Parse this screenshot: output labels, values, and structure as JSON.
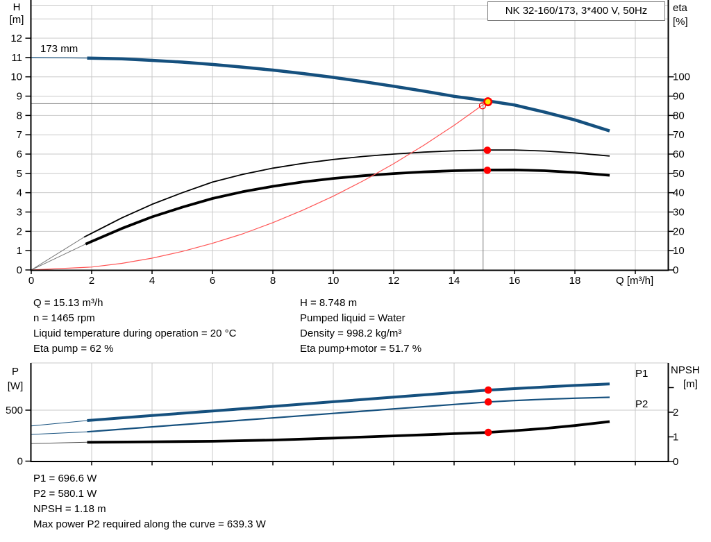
{
  "colors": {
    "curve_blue": "#15507e",
    "curve_black": "#000000",
    "system_red": "#ff5555",
    "marker_red": "#ff0000",
    "marker_yellow": "#ffe600",
    "grid": "#c8c8c8",
    "crosshair": "#7a7a7a"
  },
  "duty_info": {
    "left": [
      "Q = 15.13 m³/h",
      "n = 1465 rpm",
      "Liquid temperature during operation = 20 °C",
      "Eta pump = 62 %"
    ],
    "right": [
      "H = 8.748 m",
      "Pumped liquid = Water",
      "Density = 998.2 kg/m³",
      "Eta pump+motor = 51.7 %"
    ]
  },
  "power_info": [
    "P1 = 696.6 W",
    "P2 = 580.1 W",
    "NPSH = 1.18 m",
    "Max power P2 required along the curve = 639.3 W"
  ],
  "chart_data": [
    {
      "type": "line",
      "name": "hq-eta-chart",
      "title": "NK 32-160/173, 3*400 V, 50Hz",
      "x_axis": {
        "title": "Q [m³/h]",
        "ticks": [
          0,
          2,
          4,
          6,
          8,
          10,
          12,
          14,
          16,
          18,
          20
        ],
        "tick_labels": [
          "0",
          "2",
          "4",
          "6",
          "8",
          "10",
          "12",
          "14",
          "16",
          "18",
          ""
        ],
        "range": [
          0,
          21.1
        ]
      },
      "y_left": {
        "title": [
          "H",
          "[m]"
        ],
        "ticks": [
          0,
          1,
          2,
          3,
          4,
          5,
          6,
          7,
          8,
          9,
          10,
          11,
          12
        ],
        "grid": [
          1,
          2,
          3,
          4,
          5,
          6,
          7,
          8,
          9,
          10,
          11,
          12,
          13
        ],
        "range": [
          0,
          13.7
        ]
      },
      "y_right": {
        "title": [
          "eta",
          "[%]"
        ],
        "ticks": [
          0,
          10,
          20,
          30,
          40,
          50,
          60,
          70,
          80,
          90,
          100
        ],
        "range": [
          0,
          137
        ]
      },
      "crosshair": {
        "q": 14.96,
        "h": 8.61
      },
      "series": [
        {
          "name": "head-curve-extension",
          "axis": "left",
          "color": "#15507e",
          "width": 1.2,
          "points": [
            [
              0,
              11
            ],
            [
              1.85,
              10.97
            ]
          ]
        },
        {
          "name": "head-curve-173mm",
          "label": "173 mm",
          "label_at": [
            0.3,
            11.28
          ],
          "label_color": "#000000",
          "axis": "left",
          "color": "#15507e",
          "width": 4.5,
          "points": [
            [
              1.85,
              10.97
            ],
            [
              3,
              10.93
            ],
            [
              4,
              10.85
            ],
            [
              5,
              10.76
            ],
            [
              6,
              10.64
            ],
            [
              7,
              10.5
            ],
            [
              8,
              10.35
            ],
            [
              9,
              10.17
            ],
            [
              10,
              9.97
            ],
            [
              11,
              9.75
            ],
            [
              12,
              9.51
            ],
            [
              13,
              9.26
            ],
            [
              14,
              8.99
            ],
            [
              15.13,
              8.75
            ],
            [
              16,
              8.54
            ],
            [
              17,
              8.17
            ],
            [
              18,
              7.77
            ],
            [
              19.15,
              7.2
            ]
          ]
        },
        {
          "name": "eta-pump-extension",
          "axis": "right",
          "color": "#777777",
          "width": 1,
          "points": [
            [
              0,
              0
            ],
            [
              1.75,
              17
            ]
          ]
        },
        {
          "name": "eta-pump-curve",
          "axis": "right",
          "color": "#000000",
          "width": 1.8,
          "points": [
            [
              1.75,
              17
            ],
            [
              3,
              27
            ],
            [
              4,
              34
            ],
            [
              5,
              40
            ],
            [
              6,
              45.5
            ],
            [
              7,
              49.5
            ],
            [
              8,
              52.7
            ],
            [
              9,
              55.2
            ],
            [
              10,
              57.2
            ],
            [
              11,
              58.8
            ],
            [
              12,
              60
            ],
            [
              13,
              61
            ],
            [
              14,
              61.7
            ],
            [
              15.13,
              62.1
            ],
            [
              16,
              62.1
            ],
            [
              17,
              61.6
            ],
            [
              18,
              60.6
            ],
            [
              19.15,
              59
            ]
          ]
        },
        {
          "name": "eta-pump-motor-extension",
          "axis": "right",
          "color": "#777777",
          "width": 1,
          "points": [
            [
              0,
              0
            ],
            [
              1.8,
              13.4
            ]
          ]
        },
        {
          "name": "eta-pump-motor-curve",
          "axis": "right",
          "color": "#000000",
          "width": 3.8,
          "points": [
            [
              1.8,
              13.4
            ],
            [
              3,
              21.5
            ],
            [
              4,
              27.5
            ],
            [
              5,
              32.5
            ],
            [
              6,
              37
            ],
            [
              7,
              40.5
            ],
            [
              8,
              43.3
            ],
            [
              9,
              45.6
            ],
            [
              10,
              47.4
            ],
            [
              11,
              48.8
            ],
            [
              12,
              49.9
            ],
            [
              13,
              50.8
            ],
            [
              14,
              51.4
            ],
            [
              15.13,
              51.75
            ],
            [
              16,
              51.8
            ],
            [
              17,
              51.4
            ],
            [
              18,
              50.5
            ],
            [
              19.15,
              49
            ]
          ]
        },
        {
          "name": "system-curve",
          "axis": "left",
          "color": "#ff5555",
          "width": 1.2,
          "points": [
            [
              0,
              0
            ],
            [
              2,
              0.15
            ],
            [
              3,
              0.34
            ],
            [
              4,
              0.61
            ],
            [
              5,
              0.96
            ],
            [
              6,
              1.38
            ],
            [
              7,
              1.87
            ],
            [
              8,
              2.45
            ],
            [
              9,
              3.1
            ],
            [
              10,
              3.82
            ],
            [
              11,
              4.62
            ],
            [
              12,
              5.5
            ],
            [
              13,
              6.46
            ],
            [
              14,
              7.49
            ],
            [
              15.13,
              8.75
            ]
          ]
        }
      ],
      "markers": [
        {
          "type": "dot",
          "name": "eta-pump-duty-marker",
          "q": 15.1,
          "value": 62,
          "axis": "right",
          "color": "#ff0000"
        },
        {
          "type": "dot",
          "name": "eta-pump-motor-duty-marker",
          "q": 15.1,
          "value": 51.6,
          "axis": "right",
          "color": "#ff0000"
        },
        {
          "type": "open",
          "name": "requested-duty-marker",
          "q": 14.94,
          "value": 8.5,
          "axis": "left",
          "color": "#ff0000"
        },
        {
          "type": "duty",
          "name": "duty-point-marker",
          "q": 15.12,
          "value": 8.71,
          "axis": "left",
          "fill": "#ffe600",
          "stroke": "#ff0000"
        }
      ]
    },
    {
      "type": "line",
      "name": "power-npsh-chart",
      "x_axis": {
        "ticks": [
          2,
          4,
          6,
          8,
          10,
          12,
          14,
          16,
          18,
          20
        ],
        "tick_labels": [
          "",
          "",
          "",
          "",
          "",
          "",
          "",
          "",
          "",
          ""
        ],
        "range": [
          0,
          21.1
        ]
      },
      "y_left": {
        "title": [
          "P",
          "[W]"
        ],
        "ticks": [
          0,
          500
        ],
        "grid": [
          500
        ],
        "range": [
          0,
          965
        ]
      },
      "y_right": {
        "title": [
          "NPSH",
          "[m]"
        ],
        "ticks": [
          0,
          1,
          2,
          3
        ],
        "tick_labels": [
          "0",
          "1",
          "2",
          ""
        ],
        "range": [
          0,
          4
        ]
      },
      "series": [
        {
          "name": "p1-curve-extension",
          "axis": "left",
          "color": "#15507e",
          "width": 1,
          "points": [
            [
              0,
              345
            ],
            [
              1.85,
              398
            ]
          ]
        },
        {
          "name": "p1-curve",
          "label": "P1",
          "label_at": [
            20.0,
            827
          ],
          "label_color": "#15507e",
          "axis": "left",
          "color": "#15507e",
          "width": 4,
          "points": [
            [
              1.85,
              398
            ],
            [
              4,
              447
            ],
            [
              6,
              492
            ],
            [
              8,
              537
            ],
            [
              10,
              582
            ],
            [
              12,
              627
            ],
            [
              14,
              672
            ],
            [
              15.13,
              696.6
            ],
            [
              16,
              711
            ],
            [
              17,
              727
            ],
            [
              18,
              742
            ],
            [
              19.15,
              757
            ]
          ]
        },
        {
          "name": "p2-curve-extension",
          "axis": "left",
          "color": "#15507e",
          "width": 1,
          "points": [
            [
              0,
              262
            ],
            [
              1.85,
              288
            ]
          ]
        },
        {
          "name": "p2-curve",
          "label": "P2",
          "label_at": [
            20.0,
            527
          ],
          "label_color": "#15507e",
          "axis": "left",
          "color": "#15507e",
          "width": 2.2,
          "points": [
            [
              1.85,
              288
            ],
            [
              4,
              336
            ],
            [
              6,
              380
            ],
            [
              8,
              424
            ],
            [
              10,
              468
            ],
            [
              12,
              512
            ],
            [
              14,
              556
            ],
            [
              15.13,
              580.1
            ],
            [
              16,
              594
            ],
            [
              17,
              607
            ],
            [
              18,
              617
            ],
            [
              19.15,
              626
            ]
          ]
        },
        {
          "name": "npsh-curve-extension",
          "axis": "right",
          "color": "#555555",
          "width": 1,
          "points": [
            [
              0,
              0.73
            ],
            [
              1.85,
              0.78
            ]
          ]
        },
        {
          "name": "npsh-curve",
          "axis": "right",
          "color": "#000000",
          "width": 3.8,
          "points": [
            [
              1.85,
              0.78
            ],
            [
              4,
              0.8
            ],
            [
              6,
              0.82
            ],
            [
              8,
              0.87
            ],
            [
              10,
              0.95
            ],
            [
              12,
              1.04
            ],
            [
              14,
              1.13
            ],
            [
              15.13,
              1.18
            ],
            [
              16,
              1.25
            ],
            [
              17,
              1.34
            ],
            [
              18,
              1.46
            ],
            [
              19.15,
              1.62
            ]
          ]
        }
      ],
      "markers": [
        {
          "type": "dot",
          "name": "p1-duty-marker",
          "q": 15.13,
          "value": 696.6,
          "axis": "left",
          "color": "#ff0000"
        },
        {
          "type": "dot",
          "name": "p2-duty-marker",
          "q": 15.13,
          "value": 580.1,
          "axis": "left",
          "color": "#ff0000"
        },
        {
          "type": "dot",
          "name": "npsh-duty-marker",
          "q": 15.13,
          "value": 1.18,
          "axis": "right",
          "color": "#ff0000"
        }
      ]
    }
  ]
}
